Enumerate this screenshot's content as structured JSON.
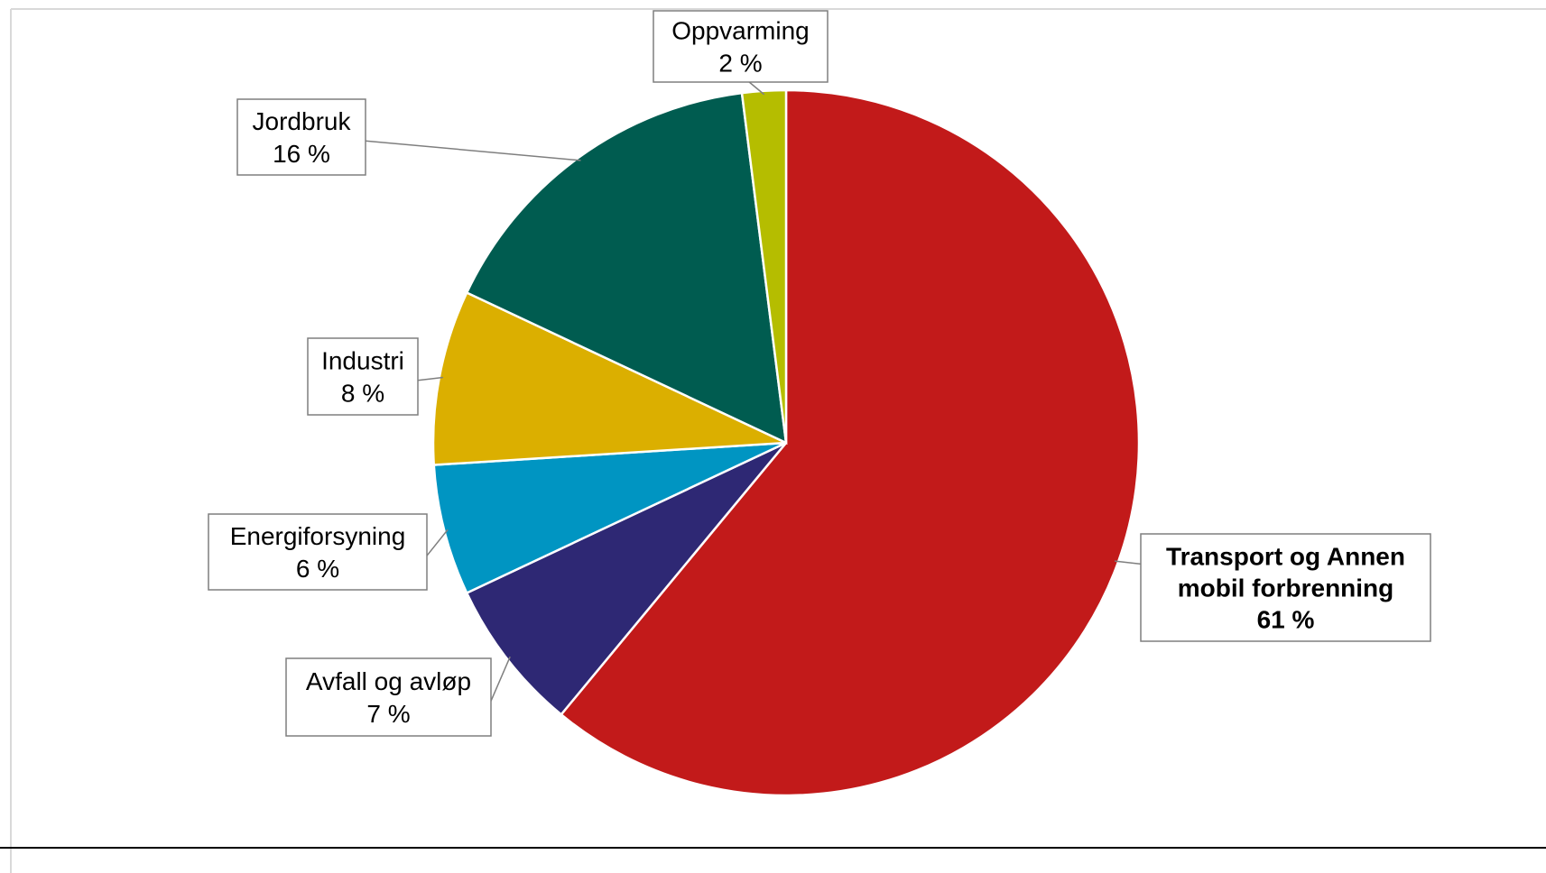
{
  "chart_data": {
    "type": "pie",
    "title": "",
    "slices": [
      {
        "label": "Transport og Annen mobil forbrenning",
        "label_lines": [
          "Transport og Annen",
          "mobil forbrenning"
        ],
        "value": 61,
        "display": "61 %",
        "color": "#C21A1A",
        "bold": true
      },
      {
        "label": "Avfall og avløp",
        "label_lines": [
          "Avfall og avløp"
        ],
        "value": 7,
        "display": "7 %",
        "color": "#2E2874",
        "bold": false
      },
      {
        "label": "Energiforsyning",
        "label_lines": [
          "Energiforsyning"
        ],
        "value": 6,
        "display": "6 %",
        "color": "#0095C2",
        "bold": false
      },
      {
        "label": "Industri",
        "label_lines": [
          "Industri"
        ],
        "value": 8,
        "display": "8 %",
        "color": "#DBAF00",
        "bold": false
      },
      {
        "label": "Jordbruk",
        "label_lines": [
          "Jordbruk"
        ],
        "value": 16,
        "display": "16 %",
        "color": "#005C50",
        "bold": false
      },
      {
        "label": "Oppvarming",
        "label_lines": [
          "Oppvarming"
        ],
        "value": 2,
        "display": "2 %",
        "color": "#B5BD00",
        "bold": false
      }
    ],
    "start_angle_deg": 0,
    "direction": "clockwise",
    "legend": "none",
    "data_labels": "callouts"
  }
}
